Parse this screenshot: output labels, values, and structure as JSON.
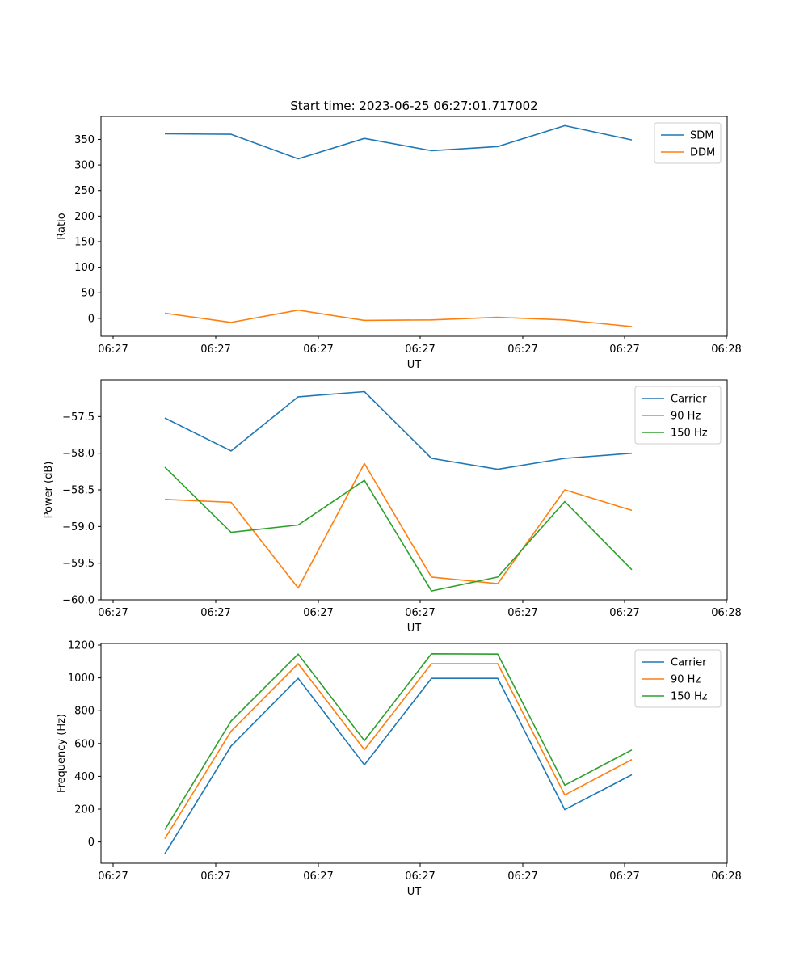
{
  "title": "Start time: 2023-06-25 06:27:01.717002",
  "colors": {
    "blue": "#1f77b4",
    "orange": "#ff7f0e",
    "green": "#2ca02c"
  },
  "chart_data": [
    {
      "type": "line",
      "title": "Start time: 2023-06-25 06:27:01.717002",
      "xlabel": "UT",
      "ylabel": "Ratio",
      "xtick_labels": [
        "06:27",
        "06:27",
        "06:27",
        "06:27",
        "06:27",
        "06:27",
        "06:28"
      ],
      "yticks": [
        0,
        50,
        100,
        150,
        200,
        250,
        300,
        350
      ],
      "ylim": [
        -35,
        395
      ],
      "legend": "top-right",
      "series": [
        {
          "name": "SDM",
          "color": "#1f77b4",
          "values": [
            361,
            360,
            312,
            352,
            328,
            336,
            377,
            349
          ]
        },
        {
          "name": "DDM",
          "color": "#ff7f0e",
          "values": [
            10,
            -8,
            16,
            -4,
            -3,
            2,
            -3,
            -16
          ]
        }
      ]
    },
    {
      "type": "line",
      "xlabel": "UT",
      "ylabel": "Power (dB)",
      "xtick_labels": [
        "06:27",
        "06:27",
        "06:27",
        "06:27",
        "06:27",
        "06:27",
        "06:28"
      ],
      "yticks": [
        -60.0,
        -59.5,
        -59.0,
        -58.5,
        -58.0,
        -57.5
      ],
      "ytick_labels": [
        "−60.0",
        "−59.5",
        "−59.0",
        "−58.5",
        "−58.0",
        "−57.5"
      ],
      "ylim": [
        -60.0,
        -57.0
      ],
      "legend": "top-right",
      "series": [
        {
          "name": "Carrier",
          "color": "#1f77b4",
          "values": [
            -57.52,
            -57.97,
            -57.23,
            -57.16,
            -58.07,
            -58.22,
            -58.07,
            -58.0
          ]
        },
        {
          "name": "90 Hz",
          "color": "#ff7f0e",
          "values": [
            -58.63,
            -58.67,
            -59.84,
            -58.14,
            -59.69,
            -59.78,
            -58.5,
            -58.78
          ]
        },
        {
          "name": "150 Hz",
          "color": "#2ca02c",
          "values": [
            -58.19,
            -59.08,
            -58.98,
            -58.37,
            -59.88,
            -59.69,
            -58.66,
            -59.59
          ]
        }
      ]
    },
    {
      "type": "line",
      "xlabel": "UT",
      "ylabel": "Frequency (Hz)",
      "xtick_labels": [
        "06:27",
        "06:27",
        "06:27",
        "06:27",
        "06:27",
        "06:27",
        "06:28"
      ],
      "yticks": [
        0,
        200,
        400,
        600,
        800,
        1000,
        1200
      ],
      "ylim": [
        -130,
        1210
      ],
      "legend": "top-right",
      "series": [
        {
          "name": "Carrier",
          "color": "#1f77b4",
          "values": [
            -72,
            585,
            997,
            470,
            997,
            997,
            197,
            410
          ]
        },
        {
          "name": "90 Hz",
          "color": "#ff7f0e",
          "values": [
            20,
            675,
            1087,
            562,
            1087,
            1087,
            287,
            502
          ]
        },
        {
          "name": "150 Hz",
          "color": "#2ca02c",
          "values": [
            75,
            737,
            1145,
            618,
            1147,
            1145,
            346,
            561
          ]
        }
      ]
    }
  ]
}
